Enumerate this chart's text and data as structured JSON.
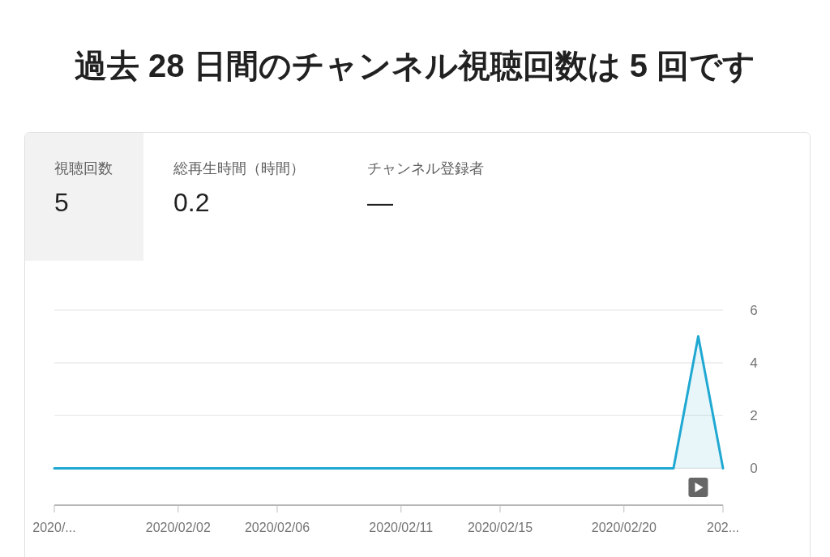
{
  "chart_data": [
    {
      "type": "other",
      "title": "過去 28 日間のチャンネル視聴回数は 5 回です",
      "categories": [
        "視聴回数",
        "総再生時間（時間）",
        "チャンネル登録者"
      ],
      "value_labels": [
        "5",
        "0.2",
        "—"
      ]
    },
    {
      "type": "area",
      "color": "#1fa8d2",
      "x": [
        "2020-01-28",
        "2020-01-29",
        "2020-01-30",
        "2020-01-31",
        "2020-02-01",
        "2020-02-02",
        "2020-02-03",
        "2020-02-04",
        "2020-02-05",
        "2020-02-06",
        "2020-02-07",
        "2020-02-08",
        "2020-02-09",
        "2020-02-10",
        "2020-02-11",
        "2020-02-12",
        "2020-02-13",
        "2020-02-14",
        "2020-02-15",
        "2020-02-16",
        "2020-02-17",
        "2020-02-18",
        "2020-02-19",
        "2020-02-20",
        "2020-02-21",
        "2020-02-22",
        "2020-02-23",
        "2020-02-24"
      ],
      "values": [
        0,
        0,
        0,
        0,
        0,
        0,
        0,
        0,
        0,
        0,
        0,
        0,
        0,
        0,
        0,
        0,
        0,
        0,
        0,
        0,
        0,
        0,
        0,
        0,
        0,
        0,
        5,
        0
      ],
      "xlim": [
        "2020-01-28",
        "2020-02-24"
      ],
      "xticks": [
        {
          "value": "2020-01-28",
          "label": "2020/..."
        },
        {
          "value": "2020-02-02",
          "label": "2020/02/02"
        },
        {
          "value": "2020-02-06",
          "label": "2020/02/06"
        },
        {
          "value": "2020-02-11",
          "label": "2020/02/11"
        },
        {
          "value": "2020-02-15",
          "label": "2020/02/15"
        },
        {
          "value": "2020-02-20",
          "label": "2020/02/20"
        },
        {
          "value": "2020-02-24",
          "label": "202..."
        }
      ],
      "ylim": [
        -1.4,
        6
      ],
      "yticks": [
        0,
        2,
        4,
        6
      ],
      "grid": "y"
    }
  ]
}
